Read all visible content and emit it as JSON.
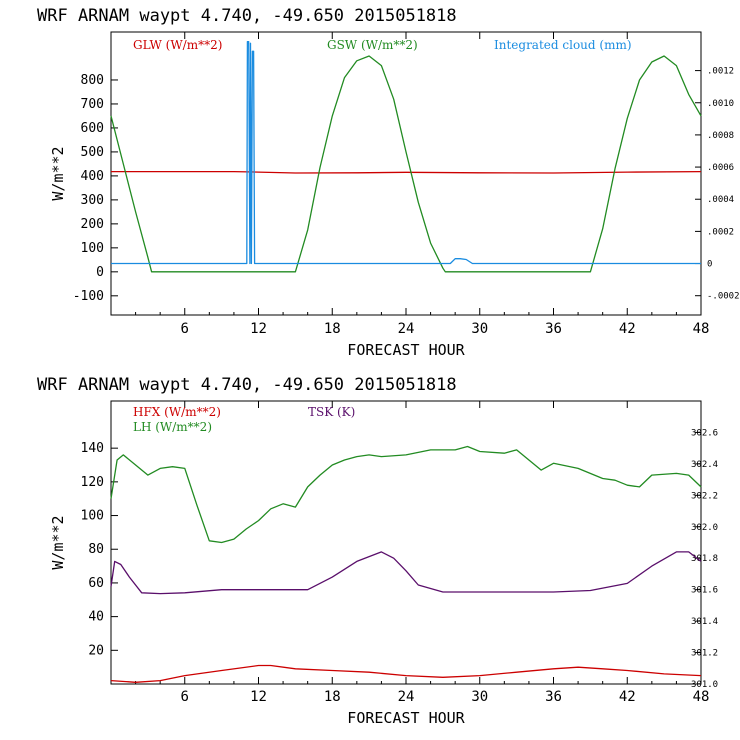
{
  "chart_data": [
    {
      "type": "line",
      "title": "WRF   ARNAM waypt    4.740, -49.650  2015051818",
      "xlabel": "FORECAST HOUR",
      "ylabel": "W/m**2",
      "xlim": [
        0,
        48
      ],
      "ylim": [
        -180,
        1000
      ],
      "xticks": [
        6,
        12,
        18,
        24,
        30,
        36,
        42,
        48
      ],
      "xtick_labels": [
        "6",
        "12",
        "18",
        "24",
        "30",
        "36",
        "42",
        "48"
      ],
      "yticks": [
        -100,
        0,
        100,
        200,
        300,
        400,
        500,
        600,
        700,
        800
      ],
      "ytick_labels": [
        "-100",
        "0",
        "100",
        "200",
        "300",
        "400",
        "500",
        "600",
        "700",
        "800"
      ],
      "right_axis": {
        "ylim": [
          -0.00032,
          0.00144
        ],
        "ticks": [
          -0.0002,
          0,
          0.0002,
          0.0004,
          0.0006,
          0.0008,
          0.001,
          0.0012
        ],
        "tick_labels": [
          "-.0002",
          "0",
          ".0002",
          ".0004",
          ".0006",
          ".0008",
          ".0010",
          ".0012"
        ]
      },
      "series": [
        {
          "name": "GLW (W/m**2)",
          "color": "#cc0000",
          "axis": "left",
          "x": [
            0,
            6,
            10,
            12,
            15,
            20,
            24,
            30,
            36,
            42,
            48
          ],
          "y": [
            418,
            418,
            418,
            416,
            412,
            413,
            415,
            413,
            412,
            416,
            418
          ]
        },
        {
          "name": "GSW (W/m**2)",
          "color": "#228b22",
          "axis": "left",
          "x": [
            0,
            1,
            2,
            3,
            3.3,
            15,
            16,
            17,
            18,
            19,
            20,
            21,
            22,
            23,
            24,
            25,
            26,
            27,
            27.2,
            39,
            40,
            41,
            42,
            43,
            44,
            45,
            46,
            47,
            48
          ],
          "y": [
            650,
            450,
            250,
            60,
            0,
            0,
            175,
            435,
            650,
            810,
            880,
            900,
            860,
            720,
            500,
            290,
            120,
            15,
            0,
            0,
            180,
            430,
            640,
            800,
            875,
            900,
            860,
            740,
            650
          ]
        },
        {
          "name": "Integrated cloud (mm)",
          "color": "#1a8ce0",
          "axis": "right",
          "x": [
            0,
            11.05,
            11.1,
            11.2,
            11.3,
            11.35,
            11.42,
            11.5,
            11.6,
            11.68,
            11.75,
            11.8,
            27.6,
            28.0,
            28.4,
            28.9,
            29.4,
            48
          ],
          "y": [
            0,
            0,
            0.00138,
            0.00138,
            0,
            0.00137,
            0,
            0.00132,
            0.00132,
            0,
            0.0,
            0,
            0,
            3e-05,
            3e-05,
            2.5e-05,
            0,
            0
          ]
        }
      ]
    },
    {
      "type": "line",
      "title": "WRF   ARNAM waypt    4.740, -49.650  2015051818",
      "xlabel": "FORECAST HOUR",
      "ylabel": "W/m**2",
      "xlim": [
        0,
        48
      ],
      "ylim": [
        0,
        168
      ],
      "xticks": [
        6,
        12,
        18,
        24,
        30,
        36,
        42,
        48
      ],
      "xtick_labels": [
        "6",
        "12",
        "18",
        "24",
        "30",
        "36",
        "42",
        "48"
      ],
      "yticks": [
        20,
        40,
        60,
        80,
        100,
        120,
        140
      ],
      "ytick_labels": [
        "20",
        "40",
        "60",
        "80",
        "100",
        "120",
        "140"
      ],
      "right_axis": {
        "ylim": [
          301.0,
          302.8
        ],
        "ticks": [
          301.0,
          301.2,
          301.4,
          301.6,
          301.8,
          302.0,
          302.2,
          302.4,
          302.6
        ],
        "tick_labels": [
          "301.0",
          "301.2",
          "301.4",
          "301.6",
          "301.8",
          "302.0",
          "302.2",
          "302.4",
          "302.6"
        ]
      },
      "series": [
        {
          "name": "HFX (W/m**2)",
          "color": "#cc0000",
          "axis": "left",
          "x": [
            0,
            2,
            4,
            6,
            9,
            12,
            13,
            15,
            18,
            21,
            24,
            27,
            30,
            33,
            36,
            38,
            40,
            42,
            45,
            48
          ],
          "y": [
            2,
            1,
            2,
            5,
            8,
            11,
            11,
            9,
            8,
            7,
            5,
            4,
            5,
            7,
            9,
            10,
            9,
            8,
            6,
            5
          ]
        },
        {
          "name": "LH  (W/m**2)",
          "color": "#228b22",
          "axis": "left",
          "x": [
            0,
            0.5,
            1,
            2,
            3,
            4,
            5,
            6,
            7,
            8,
            9,
            10,
            11,
            12,
            13,
            14,
            15,
            16,
            17,
            18,
            19,
            20,
            21,
            22,
            24,
            26,
            28,
            29,
            30,
            32,
            33,
            34,
            35,
            36,
            38,
            40,
            41,
            42,
            43,
            44,
            46,
            47,
            48
          ],
          "y": [
            110,
            133,
            136,
            130,
            124,
            128,
            129,
            128,
            106,
            85,
            84,
            86,
            92,
            97,
            104,
            107,
            105,
            117,
            124,
            130,
            133,
            135,
            136,
            135,
            136,
            139,
            139,
            141,
            138,
            137,
            139,
            133,
            127,
            131,
            128,
            122,
            121,
            118,
            117,
            124,
            125,
            124,
            117
          ]
        },
        {
          "name": "TSK (K)",
          "color": "#5a0f6b",
          "axis": "right",
          "x": [
            0,
            0.3,
            0.8,
            1.5,
            2.5,
            4,
            6,
            9,
            12,
            16,
            18,
            20,
            22,
            23,
            24,
            25,
            27,
            30,
            33,
            36,
            39,
            40,
            42,
            44,
            46,
            47,
            48
          ],
          "y": [
            301.62,
            301.78,
            301.76,
            301.68,
            301.58,
            301.575,
            301.58,
            301.6,
            301.6,
            301.6,
            301.68,
            301.78,
            301.84,
            301.8,
            301.72,
            301.63,
            301.585,
            301.585,
            301.585,
            301.585,
            301.595,
            301.61,
            301.64,
            301.75,
            301.84,
            301.84,
            301.78
          ]
        }
      ]
    }
  ]
}
